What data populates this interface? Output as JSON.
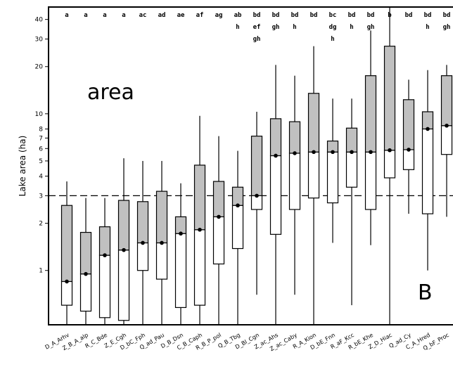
{
  "chart_data": {
    "type": "box",
    "ylabel": "Lake area  (ha)",
    "yscale": "log",
    "ylim": [
      0.45,
      48
    ],
    "yticks": [
      1,
      2,
      3,
      4,
      5,
      6,
      7,
      8,
      10,
      20,
      30,
      40
    ],
    "reference_line": 3,
    "annotations": {
      "area_text": "area",
      "panel_letter": "B"
    },
    "categories": [
      "D_A_Arhv",
      "Z_B_A_alp",
      "R_C_Bde",
      "Z_E_Cgh",
      "D_bC_Fph",
      "Q_ad_Pau",
      "D_B_Dsn",
      "C_B_Caph",
      "R_B_P_pol",
      "Q_B_Tbg",
      "D_Bl_Cgn",
      "Z_ac_Ahs",
      "Z_ac_Caby",
      "R_A_Kion",
      "D_bE_Fnn",
      "R_aF_Kcc",
      "R_bE_Khe",
      "Z_D_Hiac",
      "Q_ad_Cy",
      "C_A_Hred",
      "Q_bF_Proc"
    ],
    "groups": [
      [
        "a"
      ],
      [
        "a"
      ],
      [
        "a"
      ],
      [
        "a"
      ],
      [
        "ac"
      ],
      [
        "ad"
      ],
      [
        "ae"
      ],
      [
        "af"
      ],
      [
        "ag"
      ],
      [
        "ab",
        "h"
      ],
      [
        "bd",
        "ef",
        "gh"
      ],
      [
        "bd",
        "gh"
      ],
      [
        "bd",
        "h"
      ],
      [
        "bd"
      ],
      [
        "bc",
        "dg",
        "h"
      ],
      [
        "bd",
        "h"
      ],
      [
        "bd",
        "gh"
      ],
      [
        "b"
      ],
      [
        "bd"
      ],
      [
        "bd",
        "h"
      ],
      [
        "bd",
        "gh"
      ]
    ],
    "boxes": [
      {
        "low": 0.25,
        "q1": 0.6,
        "median": 0.85,
        "q3": 2.6,
        "high": 3.7
      },
      {
        "low": 0.25,
        "q1": 0.55,
        "median": 0.95,
        "q3": 1.75,
        "high": 2.9
      },
      {
        "low": 0.25,
        "q1": 0.5,
        "median": 1.25,
        "q3": 1.9,
        "high": 2.9
      },
      {
        "low": 0.25,
        "q1": 0.48,
        "median": 1.35,
        "q3": 2.8,
        "high": 5.2
      },
      {
        "low": 0.25,
        "q1": 1.0,
        "median": 1.5,
        "q3": 2.75,
        "high": 5.0
      },
      {
        "low": 0.25,
        "q1": 0.88,
        "median": 1.5,
        "q3": 3.2,
        "high": 5.0
      },
      {
        "low": 0.25,
        "q1": 0.58,
        "median": 1.72,
        "q3": 2.2,
        "high": 3.6
      },
      {
        "low": 0.25,
        "q1": 0.6,
        "median": 1.82,
        "q3": 4.7,
        "high": 9.7
      },
      {
        "low": 0.25,
        "q1": 1.1,
        "median": 2.2,
        "q3": 3.7,
        "high": 7.2
      },
      {
        "low": 0.25,
        "q1": 1.38,
        "median": 2.6,
        "q3": 3.4,
        "high": 5.8
      },
      {
        "low": 0.7,
        "q1": 2.45,
        "median": 3.0,
        "q3": 7.2,
        "high": 10.3
      },
      {
        "low": 0.25,
        "q1": 1.7,
        "median": 5.4,
        "q3": 9.3,
        "high": 20.5
      },
      {
        "low": 0.7,
        "q1": 2.45,
        "median": 5.6,
        "q3": 8.9,
        "high": 17.5
      },
      {
        "low": 0.25,
        "q1": 2.9,
        "median": 5.7,
        "q3": 13.5,
        "high": 27.0
      },
      {
        "low": 1.5,
        "q1": 2.7,
        "median": 5.7,
        "q3": 6.7,
        "high": 12.5
      },
      {
        "low": 0.6,
        "q1": 3.4,
        "median": 5.7,
        "q3": 8.1,
        "high": 12.5
      },
      {
        "low": 1.45,
        "q1": 2.45,
        "median": 5.7,
        "q3": 17.5,
        "high": 34.0
      },
      {
        "low": 0.25,
        "q1": 3.9,
        "median": 5.85,
        "q3": 27.0,
        "high": 48.0
      },
      {
        "low": 2.3,
        "q1": 4.4,
        "median": 5.9,
        "q3": 12.3,
        "high": 16.5
      },
      {
        "low": 1.0,
        "q1": 2.3,
        "median": 8.0,
        "q3": 10.3,
        "high": 19.0
      },
      {
        "low": 2.2,
        "q1": 5.5,
        "median": 8.4,
        "q3": 17.5,
        "high": 20.5
      }
    ]
  }
}
